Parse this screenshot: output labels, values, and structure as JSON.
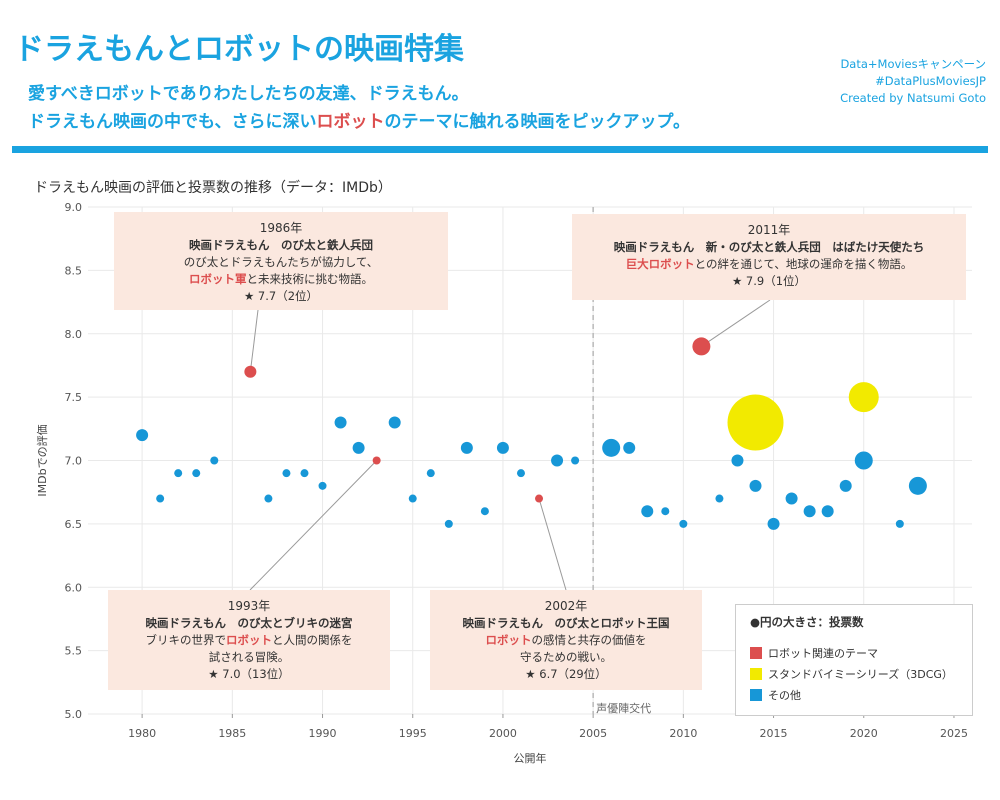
{
  "header": {
    "title": "ドラえもんとロボットの映画特集",
    "subtitle_line1": "愛すべきロボットでありわたしたちの友達、ドラえもん。",
    "subtitle_line2_pre": "ドラえもん映画の中でも、さらに深い",
    "subtitle_line2_hl": "ロボット",
    "subtitle_line2_post": "のテーマに触れる映画をピックアップ。",
    "credits": [
      "Data+Moviesキャンペーン",
      "#DataPlusMoviesJP",
      "Created by Natsumi Goto"
    ]
  },
  "chart_title": "ドラえもん映画の評価と投票数の推移（データ：IMDb）",
  "annotations": [
    {
      "year": "1986年",
      "movie": "映画ドラえもん　のび太と鉄人兵団",
      "desc1": "のび太とドラえもんたちが協力して、",
      "desc2_hl": "ロボット軍",
      "desc2": "と未来技術に挑む物語。",
      "rating": "★ 7.7（2位）"
    },
    {
      "year": "1993年",
      "movie": "映画ドラえもん　のび太とブリキの迷宮",
      "desc1": "ブリキの世界で",
      "desc1_hl": "ロボット",
      "desc1_post": "と人間の関係を",
      "desc2": "試される冒険。",
      "rating": "★ 7.0（13位）"
    },
    {
      "year": "2002年",
      "movie": "映画ドラえもん　のび太とロボット王国",
      "desc1_hl": "ロボット",
      "desc1_post": "の感情と共存の価値を",
      "desc2": "守るための戦い。",
      "rating": "★ 6.7（29位）"
    },
    {
      "year": "2011年",
      "movie": "映画ドラえもん　新・のび太と鉄人兵団　はばたけ天使たち",
      "desc1_hl": "巨大ロボット",
      "desc1_post": "との絆を通じて、地球の運命を描く物語。",
      "rating": "★ 7.9（1位）"
    }
  ],
  "legend": {
    "title": "●円の大きさ：投票数",
    "items": [
      {
        "label": "ロボット関連のテーマ",
        "color": "#dc4e4e"
      },
      {
        "label": "スタンドバイミーシリーズ（3DCG）",
        "color": "#f2ea00"
      },
      {
        "label": "その他",
        "color": "#1797d7"
      }
    ]
  },
  "chart_data": {
    "type": "scatter",
    "xlabel": "公開年",
    "ylabel": "IMDbでの評価",
    "xlim": [
      1977,
      2026
    ],
    "ylim": [
      5.0,
      9.0
    ],
    "xticks": [
      1980,
      1985,
      1990,
      1995,
      2000,
      2005,
      2010,
      2015,
      2020,
      2025
    ],
    "yticks": [
      "5.0",
      "5.5",
      "6.0",
      "6.5",
      "7.0",
      "7.5",
      "8.0",
      "8.5",
      "9.0"
    ],
    "grid": true,
    "reference_line": {
      "x": 2005,
      "label": "声優陣交代"
    },
    "colors": {
      "robot": "#dc4e4e",
      "standbyme": "#f2ea00",
      "other": "#1797d7"
    },
    "size_scale": {
      "small": 4,
      "medium": 6,
      "large": 9,
      "xlarge": 15,
      "xxlarge": 28
    },
    "points": [
      {
        "year": 1980,
        "rating": 7.2,
        "group": "other",
        "size": "medium"
      },
      {
        "year": 1981,
        "rating": 6.7,
        "group": "other",
        "size": "small"
      },
      {
        "year": 1982,
        "rating": 6.9,
        "group": "other",
        "size": "small"
      },
      {
        "year": 1983,
        "rating": 6.9,
        "group": "other",
        "size": "small"
      },
      {
        "year": 1984,
        "rating": 7.0,
        "group": "other",
        "size": "small"
      },
      {
        "year": 1986,
        "rating": 7.7,
        "group": "robot",
        "size": "medium"
      },
      {
        "year": 1987,
        "rating": 6.7,
        "group": "other",
        "size": "small"
      },
      {
        "year": 1988,
        "rating": 6.9,
        "group": "other",
        "size": "small"
      },
      {
        "year": 1989,
        "rating": 6.9,
        "group": "other",
        "size": "small"
      },
      {
        "year": 1990,
        "rating": 6.8,
        "group": "other",
        "size": "small"
      },
      {
        "year": 1991,
        "rating": 7.3,
        "group": "other",
        "size": "medium"
      },
      {
        "year": 1992,
        "rating": 7.1,
        "group": "other",
        "size": "medium"
      },
      {
        "year": 1993,
        "rating": 7.0,
        "group": "robot",
        "size": "small"
      },
      {
        "year": 1994,
        "rating": 7.3,
        "group": "other",
        "size": "medium"
      },
      {
        "year": 1995,
        "rating": 6.7,
        "group": "other",
        "size": "small"
      },
      {
        "year": 1996,
        "rating": 6.9,
        "group": "other",
        "size": "small"
      },
      {
        "year": 1997,
        "rating": 6.5,
        "group": "other",
        "size": "small"
      },
      {
        "year": 1998,
        "rating": 7.1,
        "group": "other",
        "size": "medium"
      },
      {
        "year": 1999,
        "rating": 6.6,
        "group": "other",
        "size": "small"
      },
      {
        "year": 2000,
        "rating": 7.1,
        "group": "other",
        "size": "medium"
      },
      {
        "year": 2001,
        "rating": 6.9,
        "group": "other",
        "size": "small"
      },
      {
        "year": 2002,
        "rating": 6.7,
        "group": "robot",
        "size": "small"
      },
      {
        "year": 2003,
        "rating": 7.0,
        "group": "other",
        "size": "medium"
      },
      {
        "year": 2004,
        "rating": 7.0,
        "group": "other",
        "size": "small"
      },
      {
        "year": 2006,
        "rating": 7.1,
        "group": "other",
        "size": "large"
      },
      {
        "year": 2007,
        "rating": 7.1,
        "group": "other",
        "size": "medium"
      },
      {
        "year": 2008,
        "rating": 6.6,
        "group": "other",
        "size": "medium"
      },
      {
        "year": 2009,
        "rating": 6.6,
        "group": "other",
        "size": "small"
      },
      {
        "year": 2010,
        "rating": 6.5,
        "group": "other",
        "size": "small"
      },
      {
        "year": 2011,
        "rating": 7.9,
        "group": "robot",
        "size": "large"
      },
      {
        "year": 2012,
        "rating": 6.7,
        "group": "other",
        "size": "small"
      },
      {
        "year": 2013,
        "rating": 7.0,
        "group": "other",
        "size": "medium"
      },
      {
        "year": 2014,
        "rating": 7.3,
        "group": "standbyme",
        "size": "xxlarge"
      },
      {
        "year": 2014,
        "rating": 6.8,
        "group": "other",
        "size": "medium"
      },
      {
        "year": 2015,
        "rating": 6.5,
        "group": "other",
        "size": "medium"
      },
      {
        "year": 2016,
        "rating": 6.7,
        "group": "other",
        "size": "medium"
      },
      {
        "year": 2017,
        "rating": 6.6,
        "group": "other",
        "size": "medium"
      },
      {
        "year": 2018,
        "rating": 6.6,
        "group": "other",
        "size": "medium"
      },
      {
        "year": 2019,
        "rating": 6.8,
        "group": "other",
        "size": "medium"
      },
      {
        "year": 2020,
        "rating": 7.5,
        "group": "standbyme",
        "size": "xlarge"
      },
      {
        "year": 2020,
        "rating": 7.0,
        "group": "other",
        "size": "large"
      },
      {
        "year": 2022,
        "rating": 6.5,
        "group": "other",
        "size": "small"
      },
      {
        "year": 2023,
        "rating": 6.8,
        "group": "other",
        "size": "large"
      }
    ]
  }
}
